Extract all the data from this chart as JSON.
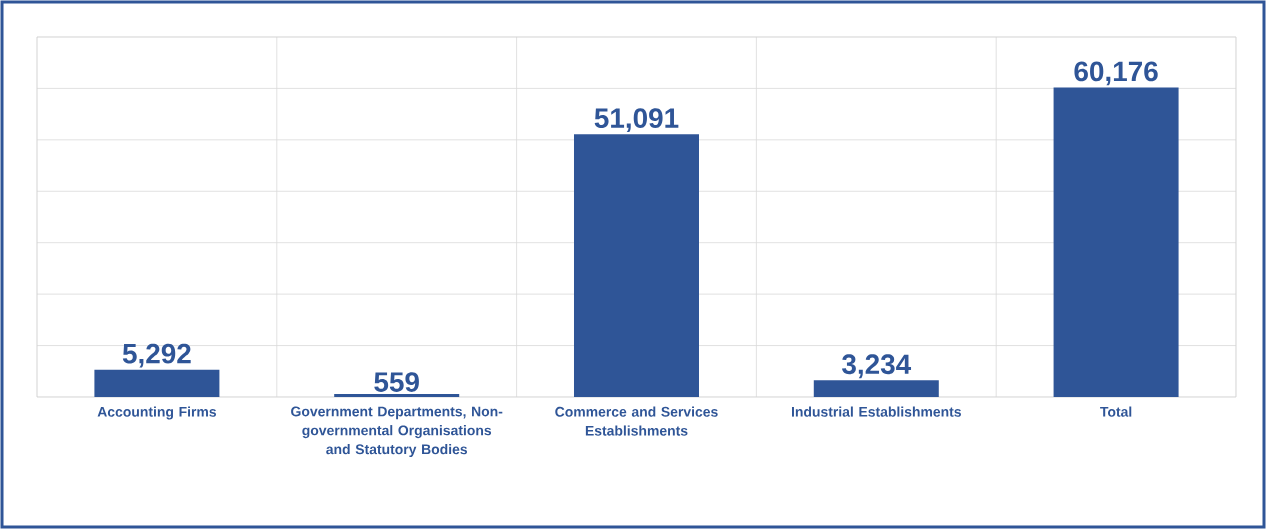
{
  "chart_data": {
    "type": "bar",
    "categories": [
      "Accounting Firms",
      "Government Departments, Non-governmental Organisations and Statutory Bodies",
      "Commerce and Services Establishments",
      "Industrial Establishments",
      "Total"
    ],
    "values": [
      5292,
      559,
      51091,
      3234,
      60176
    ],
    "value_labels": [
      "5,292",
      "559",
      "51,091",
      "3,234",
      "60,176"
    ],
    "color": "#2f5597",
    "ylim": [
      0,
      70000
    ],
    "yticks": [
      {
        "value": 0,
        "label": null
      },
      {
        "value": 10000,
        "label": null
      },
      {
        "value": 20000,
        "label": null
      },
      {
        "value": 30000,
        "label": null
      },
      {
        "value": 40000,
        "label": null
      },
      {
        "value": 50000,
        "label": null
      },
      {
        "value": 60000,
        "label": null
      },
      {
        "value": 70000,
        "label": null
      }
    ],
    "tick_labels": "x",
    "grid": true
  }
}
